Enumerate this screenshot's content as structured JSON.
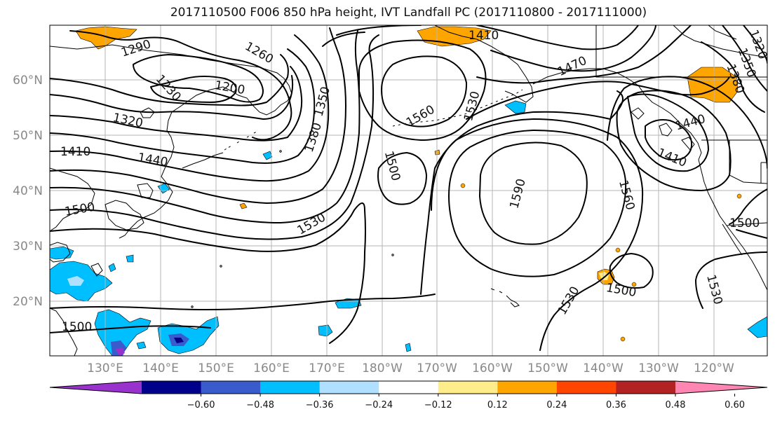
{
  "title": "2017110500 F006 850 hPa height, IVT Landfall PC (2017110800 - 2017111000)",
  "latitude_labels": [
    "60°N",
    "50°N",
    "40°N",
    "30°N",
    "20°N"
  ],
  "longitude_labels": [
    "130°E",
    "140°E",
    "150°E",
    "160°E",
    "170°E",
    "180°W",
    "170°W",
    "160°W",
    "150°W",
    "140°W",
    "130°W",
    "120°W"
  ],
  "contour_labels": [
    "1290",
    "1260",
    "1230",
    "1200",
    "1350",
    "1380",
    "1320",
    "1410",
    "1440",
    "1560",
    "1530",
    "1500",
    "1470",
    "1590",
    "1560",
    "1530",
    "1500",
    "1410",
    "1440",
    "1410",
    "1380",
    "1350",
    "1320",
    "1500",
    "1530",
    "1500",
    "1500",
    "1530"
  ],
  "colorbar": {
    "tick_labels": [
      "−0.60",
      "−0.48",
      "−0.36",
      "−0.24",
      "−0.12",
      "0.12",
      "0.24",
      "0.36",
      "0.48",
      "0.60"
    ],
    "colors": [
      "#9932cc",
      "#00008b",
      "#3a5bcc",
      "#00bfff",
      "#b0e0ff",
      "#ffffff",
      "#ffec8b",
      "#ffa500",
      "#ff4500",
      "#b22222",
      "#ff85b3"
    ]
  },
  "shading_colors": {
    "blue_light": "#b0e0ff",
    "blue": "#00bfff",
    "blue_dark": "#3a5bcc",
    "navy": "#00008b",
    "purple": "#9932cc",
    "orange": "#ffa500",
    "yellow": "#ffec8b"
  }
}
